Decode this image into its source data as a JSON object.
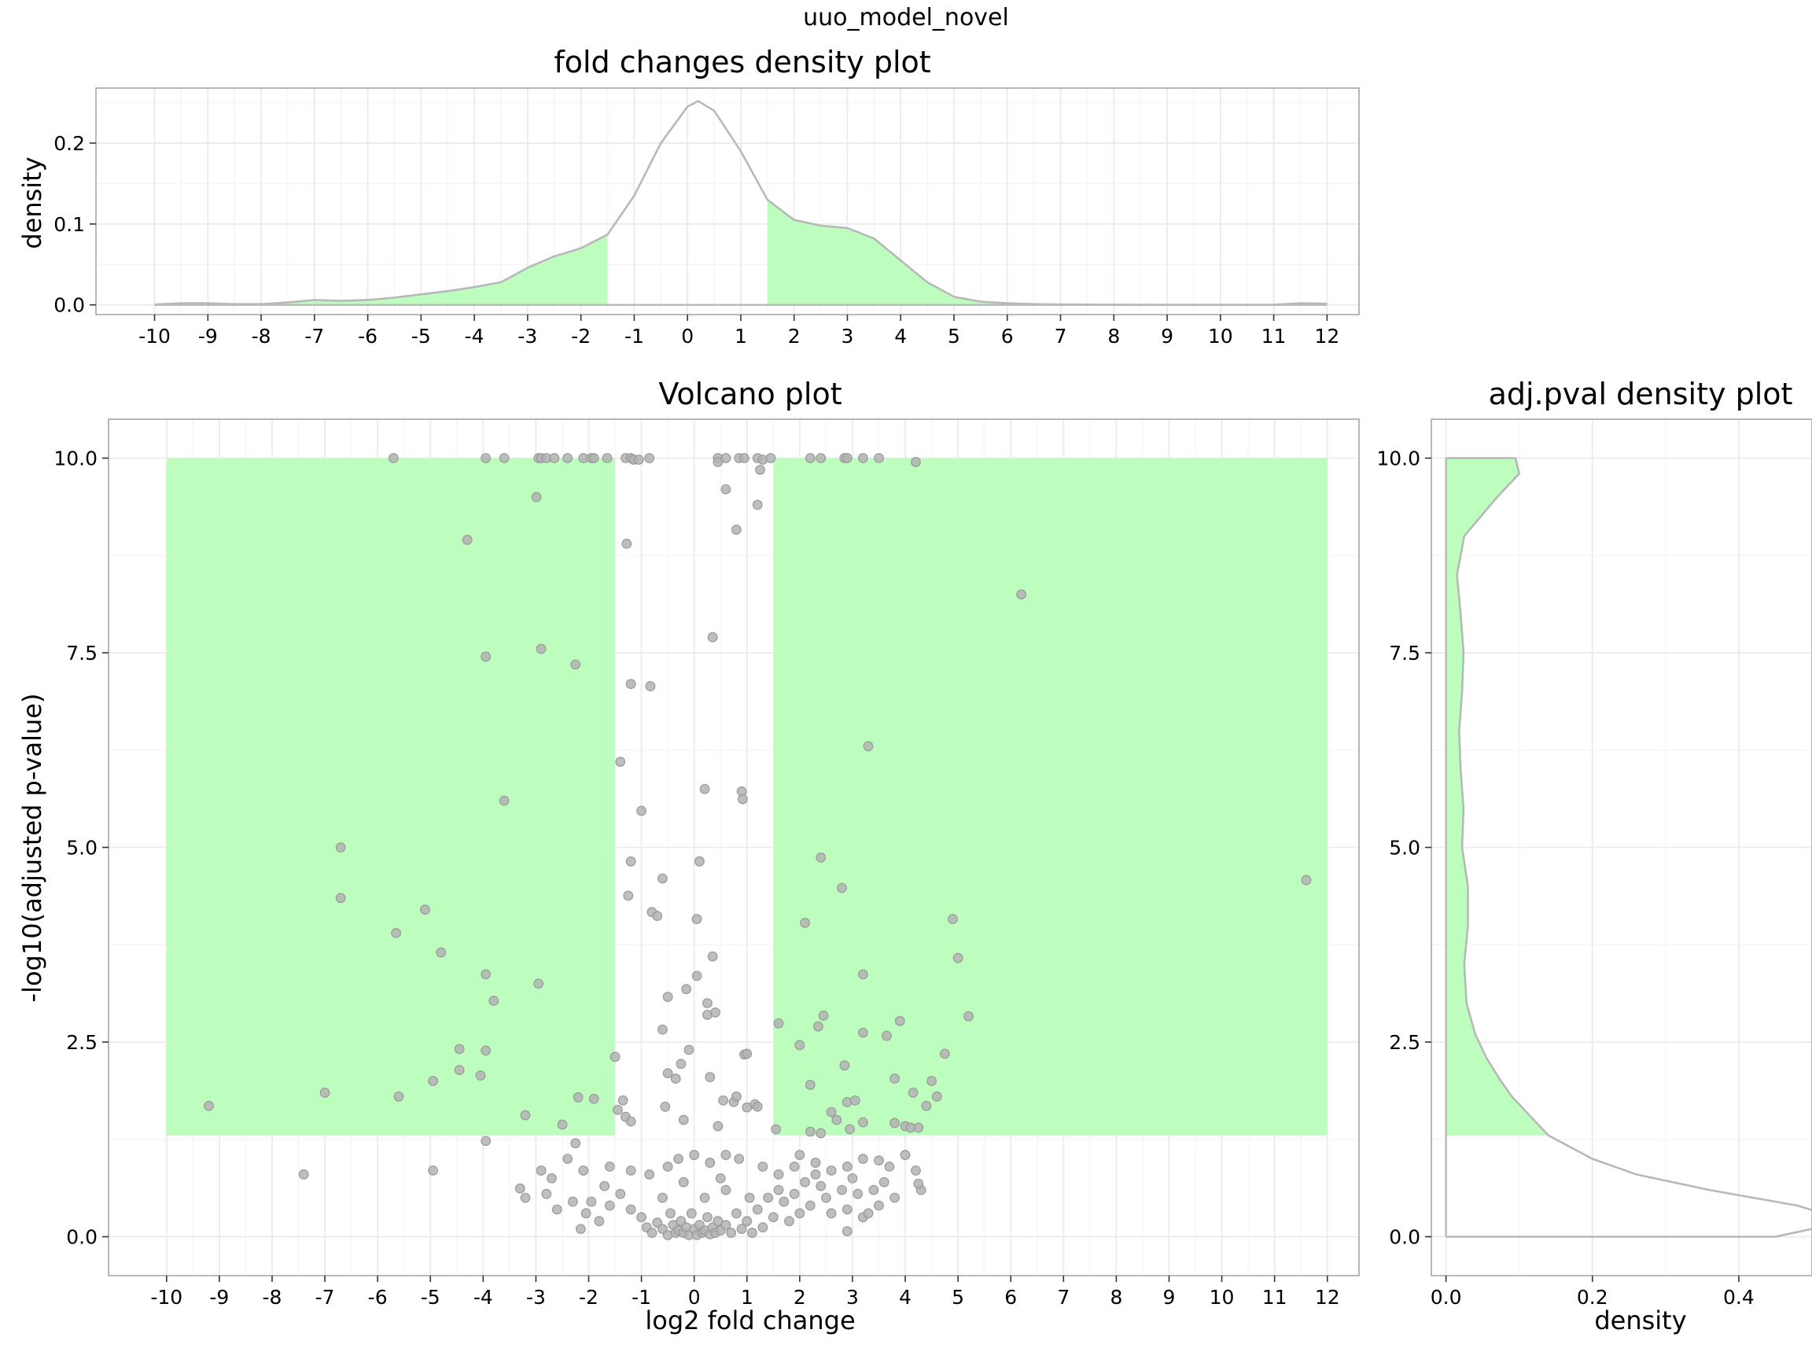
{
  "figure": {
    "suptitle": "uuo_model_novel"
  },
  "colors": {
    "highlight": "#bdfebf",
    "curve": "#b8b8b8",
    "point_fill": "#b3b3b3",
    "grid": "#ebebeb"
  },
  "chart_data": [
    {
      "id": "fc-density",
      "type": "area",
      "title": "fold changes density plot",
      "xlabel": "",
      "ylabel": "density",
      "xlim": [
        -11.1,
        12.6
      ],
      "ylim": [
        -0.012,
        0.268
      ],
      "xticks": [
        -10,
        -9,
        -8,
        -7,
        -6,
        -5,
        -4,
        -3,
        -2,
        -1,
        0,
        1,
        2,
        3,
        4,
        5,
        6,
        7,
        8,
        9,
        10,
        11,
        12
      ],
      "yticks": [
        0.0,
        0.1,
        0.2
      ],
      "ytick_labels": [
        "0.0",
        "0.1",
        "0.2"
      ],
      "shaded_ranges": [
        [
          -10,
          -1.5
        ],
        [
          1.5,
          12
        ]
      ],
      "x": [
        -10,
        -9.5,
        -9,
        -8.5,
        -8,
        -7.5,
        -7,
        -6.5,
        -6,
        -5.5,
        -5,
        -4.5,
        -4,
        -3.5,
        -3,
        -2.5,
        -2,
        -1.5,
        -1,
        -0.5,
        0,
        0.2,
        0.5,
        1,
        1.5,
        2,
        2.5,
        3,
        3.5,
        4,
        4.5,
        5,
        5.5,
        6,
        6.5,
        7,
        7.5,
        8,
        9,
        10,
        11,
        11.5,
        12
      ],
      "values": [
        0.0005,
        0.002,
        0.002,
        0.001,
        0.001,
        0.003,
        0.006,
        0.005,
        0.006,
        0.009,
        0.013,
        0.017,
        0.022,
        0.028,
        0.046,
        0.06,
        0.07,
        0.087,
        0.135,
        0.2,
        0.245,
        0.252,
        0.24,
        0.19,
        0.13,
        0.105,
        0.098,
        0.095,
        0.082,
        0.055,
        0.028,
        0.01,
        0.004,
        0.002,
        0.001,
        0.0005,
        0.0003,
        0.0002,
        0.0001,
        0.0001,
        0.0002,
        0.002,
        0.0015
      ]
    },
    {
      "id": "volcano",
      "type": "scatter",
      "title": "Volcano plot",
      "xlabel": "log2 fold change",
      "ylabel": "-log10(adjusted p-value)",
      "xlim": [
        -11.1,
        12.6
      ],
      "ylim": [
        -0.5,
        10.5
      ],
      "xticks": [
        -10,
        -9,
        -8,
        -7,
        -6,
        -5,
        -4,
        -3,
        -2,
        -1,
        0,
        1,
        2,
        3,
        4,
        5,
        6,
        7,
        8,
        9,
        10,
        11,
        12
      ],
      "yticks": [
        0.0,
        2.5,
        5.0,
        7.5,
        10.0
      ],
      "ytick_labels": [
        "0.0",
        "2.5",
        "5.0",
        "7.5",
        "10.0"
      ],
      "significance_regions": [
        {
          "x": [
            -10,
            -1.5
          ],
          "y": [
            1.3,
            10
          ]
        },
        {
          "x": [
            1.5,
            12
          ],
          "y": [
            1.3,
            10
          ]
        }
      ],
      "points": [
        [
          -5.7,
          10
        ],
        [
          -3.95,
          10
        ],
        [
          -3.6,
          10
        ],
        [
          -2.95,
          10
        ],
        [
          -2.9,
          10
        ],
        [
          -2.8,
          10
        ],
        [
          -2.65,
          10
        ],
        [
          -2.4,
          10
        ],
        [
          -2.1,
          10
        ],
        [
          -1.95,
          10
        ],
        [
          -1.9,
          10
        ],
        [
          -1.65,
          10
        ],
        [
          -1.3,
          10
        ],
        [
          -1.2,
          10
        ],
        [
          -1.15,
          9.98
        ],
        [
          -1.05,
          9.98
        ],
        [
          -0.85,
          10
        ],
        [
          0.45,
          10
        ],
        [
          0.45,
          9.95
        ],
        [
          0.6,
          10
        ],
        [
          0.85,
          10
        ],
        [
          0.95,
          10
        ],
        [
          1.2,
          10
        ],
        [
          1.3,
          9.98
        ],
        [
          1.45,
          10
        ],
        [
          2.2,
          10
        ],
        [
          2.4,
          10
        ],
        [
          2.85,
          10
        ],
        [
          2.9,
          10
        ],
        [
          3.2,
          10
        ],
        [
          3.5,
          10
        ],
        [
          4.2,
          9.95
        ],
        [
          0.6,
          9.6
        ],
        [
          1.2,
          9.4
        ],
        [
          1.25,
          9.85
        ],
        [
          -2.99,
          9.5
        ],
        [
          -1.28,
          8.9
        ],
        [
          0.8,
          9.08
        ],
        [
          -4.3,
          8.95
        ],
        [
          6.2,
          8.25
        ],
        [
          0.35,
          7.7
        ],
        [
          -2.9,
          7.55
        ],
        [
          -3.95,
          7.45
        ],
        [
          -2.25,
          7.35
        ],
        [
          -1.2,
          7.1
        ],
        [
          -0.83,
          7.07
        ],
        [
          3.3,
          6.3
        ],
        [
          -1.4,
          6.1
        ],
        [
          -3.6,
          5.6
        ],
        [
          -1.0,
          5.47
        ],
        [
          0.2,
          5.75
        ],
        [
          0.9,
          5.72
        ],
        [
          0.92,
          5.62
        ],
        [
          -6.7,
          5.0
        ],
        [
          -6.7,
          4.35
        ],
        [
          -1.2,
          4.82
        ],
        [
          -1.25,
          4.38
        ],
        [
          0.1,
          4.82
        ],
        [
          -0.6,
          4.6
        ],
        [
          2.4,
          4.87
        ],
        [
          2.8,
          4.48
        ],
        [
          11.6,
          4.58
        ],
        [
          -5.1,
          4.2
        ],
        [
          -5.65,
          3.9
        ],
        [
          -0.8,
          4.17
        ],
        [
          -0.7,
          4.12
        ],
        [
          0.05,
          4.08
        ],
        [
          2.1,
          4.03
        ],
        [
          4.9,
          4.08
        ],
        [
          -4.8,
          3.65
        ],
        [
          5.0,
          3.58
        ],
        [
          0.35,
          3.6
        ],
        [
          -3.95,
          3.37
        ],
        [
          -2.95,
          3.25
        ],
        [
          -0.5,
          3.08
        ],
        [
          0.05,
          3.35
        ],
        [
          -3.8,
          3.03
        ],
        [
          -0.15,
          3.18
        ],
        [
          0.25,
          3.0
        ],
        [
          0.25,
          2.85
        ],
        [
          0.4,
          2.88
        ],
        [
          3.2,
          3.37
        ],
        [
          1.6,
          2.74
        ],
        [
          2.35,
          2.7
        ],
        [
          2.45,
          2.84
        ],
        [
          -0.6,
          2.66
        ],
        [
          3.2,
          2.62
        ],
        [
          3.9,
          2.77
        ],
        [
          3.65,
          2.58
        ],
        [
          5.2,
          2.83
        ],
        [
          -1.5,
          2.31
        ],
        [
          -4.45,
          2.41
        ],
        [
          -3.95,
          2.39
        ],
        [
          -4.45,
          2.14
        ],
        [
          -4.05,
          2.07
        ],
        [
          -4.95,
          2.0
        ],
        [
          -0.1,
          2.4
        ],
        [
          -0.25,
          2.22
        ],
        [
          -0.5,
          2.1
        ],
        [
          0.95,
          2.34
        ],
        [
          1.0,
          2.35
        ],
        [
          2.0,
          2.46
        ],
        [
          2.85,
          2.2
        ],
        [
          3.8,
          2.03
        ],
        [
          4.75,
          2.35
        ],
        [
          -0.35,
          2.03
        ],
        [
          0.3,
          2.05
        ],
        [
          -7.0,
          1.85
        ],
        [
          -5.6,
          1.8
        ],
        [
          -2.2,
          1.79
        ],
        [
          -1.9,
          1.77
        ],
        [
          -1.35,
          1.75
        ],
        [
          -1.45,
          1.63
        ],
        [
          -9.2,
          1.68
        ],
        [
          2.2,
          1.95
        ],
        [
          2.9,
          1.73
        ],
        [
          3.05,
          1.75
        ],
        [
          4.15,
          1.85
        ],
        [
          4.5,
          2.0
        ],
        [
          4.6,
          1.8
        ],
        [
          4.4,
          1.68
        ],
        [
          0.75,
          1.73
        ],
        [
          0.55,
          1.75
        ],
        [
          0.8,
          1.8
        ],
        [
          1.15,
          1.7
        ],
        [
          1.0,
          1.66
        ],
        [
          1.2,
          1.67
        ],
        [
          -0.55,
          1.67
        ],
        [
          -1.3,
          1.54
        ],
        [
          -1.2,
          1.48
        ],
        [
          -3.2,
          1.56
        ],
        [
          -2.5,
          1.44
        ],
        [
          2.6,
          1.6
        ],
        [
          2.7,
          1.5
        ],
        [
          2.95,
          1.38
        ],
        [
          3.2,
          1.47
        ],
        [
          3.8,
          1.46
        ],
        [
          4.0,
          1.42
        ],
        [
          4.1,
          1.4
        ],
        [
          4.25,
          1.4
        ],
        [
          1.55,
          1.38
        ],
        [
          2.2,
          1.35
        ],
        [
          2.4,
          1.33
        ],
        [
          -0.2,
          1.5
        ],
        [
          0.45,
          1.42
        ],
        [
          -3.95,
          1.23
        ],
        [
          -7.4,
          0.8
        ],
        [
          -4.95,
          0.85
        ],
        [
          -2.25,
          1.2
        ],
        [
          -2.4,
          1.0
        ],
        [
          -2.1,
          0.85
        ],
        [
          -1.6,
          0.9
        ],
        [
          -1.2,
          0.85
        ],
        [
          -0.85,
          0.8
        ],
        [
          -0.5,
          0.9
        ],
        [
          -0.3,
          1.0
        ],
        [
          0.0,
          1.05
        ],
        [
          0.3,
          0.95
        ],
        [
          0.6,
          1.05
        ],
        [
          0.85,
          1.0
        ],
        [
          1.3,
          0.9
        ],
        [
          1.6,
          0.8
        ],
        [
          1.9,
          0.9
        ],
        [
          2.0,
          1.05
        ],
        [
          2.3,
          0.95
        ],
        [
          2.6,
          0.85
        ],
        [
          2.9,
          0.9
        ],
        [
          3.2,
          1.0
        ],
        [
          3.5,
          0.98
        ],
        [
          3.7,
          0.9
        ],
        [
          4.0,
          1.05
        ],
        [
          4.2,
          0.85
        ],
        [
          4.3,
          0.6
        ],
        [
          4.25,
          0.68
        ],
        [
          -2.9,
          0.85
        ],
        [
          -2.7,
          0.75
        ],
        [
          -3.3,
          0.62
        ],
        [
          -3.2,
          0.5
        ],
        [
          -2.8,
          0.55
        ],
        [
          -2.6,
          0.35
        ],
        [
          -2.3,
          0.45
        ],
        [
          -2.05,
          0.3
        ],
        [
          -1.8,
          0.2
        ],
        [
          -1.6,
          0.4
        ],
        [
          -1.4,
          0.55
        ],
        [
          -1.2,
          0.35
        ],
        [
          -1.0,
          0.25
        ],
        [
          -0.9,
          0.12
        ],
        [
          -0.8,
          0.05
        ],
        [
          -0.7,
          0.18
        ],
        [
          -0.6,
          0.1
        ],
        [
          -0.5,
          0.02
        ],
        [
          -0.45,
          0.3
        ],
        [
          -0.4,
          0.15
        ],
        [
          -0.35,
          0.05
        ],
        [
          -0.3,
          0.08
        ],
        [
          -0.25,
          0.2
        ],
        [
          -0.2,
          0.05
        ],
        [
          -0.15,
          0.12
        ],
        [
          -0.1,
          0.02
        ],
        [
          -0.05,
          0.3
        ],
        [
          0.0,
          0.1
        ],
        [
          0.05,
          0.02
        ],
        [
          0.1,
          0.15
        ],
        [
          0.15,
          0.05
        ],
        [
          0.2,
          0.08
        ],
        [
          0.25,
          0.25
        ],
        [
          0.3,
          0.03
        ],
        [
          0.35,
          0.12
        ],
        [
          0.4,
          0.05
        ],
        [
          0.45,
          0.2
        ],
        [
          0.5,
          0.08
        ],
        [
          0.6,
          0.15
        ],
        [
          0.7,
          0.05
        ],
        [
          0.8,
          0.3
        ],
        [
          0.9,
          0.1
        ],
        [
          1.0,
          0.2
        ],
        [
          1.1,
          0.05
        ],
        [
          1.2,
          0.35
        ],
        [
          1.3,
          0.12
        ],
        [
          1.4,
          0.5
        ],
        [
          1.5,
          0.25
        ],
        [
          1.6,
          0.6
        ],
        [
          1.7,
          0.45
        ],
        [
          1.8,
          0.2
        ],
        [
          1.9,
          0.55
        ],
        [
          2.0,
          0.3
        ],
        [
          2.1,
          0.7
        ],
        [
          2.2,
          0.4
        ],
        [
          2.4,
          0.65
        ],
        [
          2.5,
          0.5
        ],
        [
          2.6,
          0.3
        ],
        [
          2.8,
          0.6
        ],
        [
          2.9,
          0.35
        ],
        [
          3.0,
          0.75
        ],
        [
          3.1,
          0.55
        ],
        [
          3.2,
          0.25
        ],
        [
          3.4,
          0.6
        ],
        [
          3.5,
          0.4
        ],
        [
          3.6,
          0.7
        ],
        [
          3.8,
          0.5
        ],
        [
          2.9,
          0.07
        ],
        [
          -2.15,
          0.1
        ],
        [
          -1.95,
          0.45
        ],
        [
          -0.6,
          0.5
        ],
        [
          0.6,
          0.6
        ],
        [
          1.05,
          0.5
        ],
        [
          0.2,
          0.5
        ],
        [
          -0.2,
          0.7
        ],
        [
          0.5,
          0.75
        ],
        [
          -1.7,
          0.65
        ],
        [
          2.3,
          0.8
        ],
        [
          3.3,
          0.3
        ]
      ]
    },
    {
      "id": "pval-density",
      "type": "area",
      "orientation": "horizontal",
      "title": "adj.pval density plot",
      "xlabel": "density",
      "ylabel": "",
      "xlim": [
        -0.02,
        0.5
      ],
      "ylim": [
        -0.5,
        10.5
      ],
      "xticks": [
        0.0,
        0.2,
        0.4
      ],
      "xtick_labels": [
        "0.0",
        "0.2",
        "0.4"
      ],
      "yticks": [
        0.0,
        2.5,
        5.0,
        7.5,
        10.0
      ],
      "ytick_labels": [
        "0.0",
        "2.5",
        "5.0",
        "7.5",
        "10.0"
      ],
      "shaded_range": [
        1.3,
        10
      ],
      "y": [
        0,
        0.1,
        0.2,
        0.4,
        0.6,
        0.8,
        1.0,
        1.2,
        1.3,
        1.5,
        1.8,
        2.0,
        2.3,
        2.6,
        3.0,
        3.5,
        4.0,
        4.5,
        5.0,
        5.5,
        6.0,
        6.5,
        7.0,
        7.5,
        8.0,
        8.5,
        9.0,
        9.5,
        9.8,
        10.0
      ],
      "values": [
        0.45,
        0.5,
        0.55,
        0.48,
        0.36,
        0.26,
        0.2,
        0.16,
        0.14,
        0.12,
        0.09,
        0.075,
        0.055,
        0.04,
        0.028,
        0.025,
        0.03,
        0.03,
        0.022,
        0.024,
        0.02,
        0.018,
        0.022,
        0.024,
        0.02,
        0.015,
        0.025,
        0.07,
        0.1,
        0.095
      ]
    }
  ]
}
